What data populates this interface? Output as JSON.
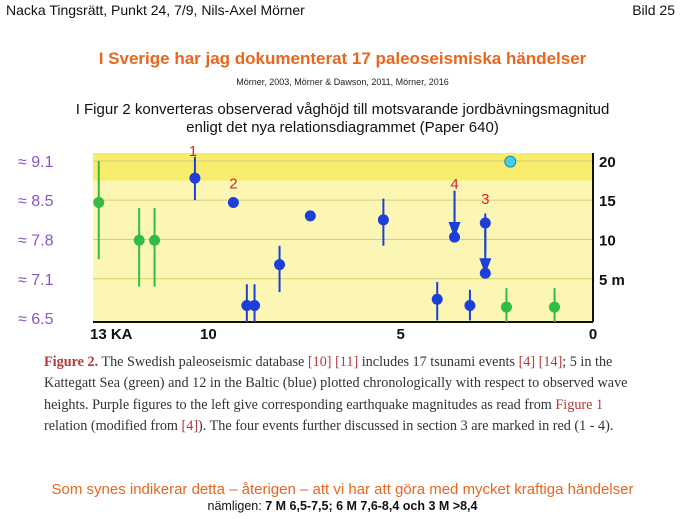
{
  "header": {
    "left": "Nacka Tingsrätt, Punkt 24, 7/9, Nils-Axel Mörner",
    "right": "Bild 25"
  },
  "title": "I Sverige har jag dokumenterat 17 paleoseismiska händelser",
  "references": "Mörner, 2003, Mörner & Dawson, 2011, Mörner, 2016",
  "intro": {
    "line1": "I Figur 2 konverteras observerad våghöjd till motsvarande jordbävningsmagnitud",
    "line2": "enligt det nya relationsdiagrammet (Paper 640)"
  },
  "chart_data": {
    "type": "scatter",
    "xlim": [
      13,
      0
    ],
    "x_ticks": [
      "13 KA",
      "10",
      "5",
      "0"
    ],
    "x_tick_values": [
      13,
      10,
      5,
      0
    ],
    "left_ticks": [
      "≈ 9.1",
      "≈ 8.5",
      "≈ 7.8",
      "≈ 7.1",
      "≈ 6.5"
    ],
    "right_ticks": [
      "20",
      "15",
      "10",
      "5 m"
    ],
    "right_tick_values": [
      20,
      15,
      10,
      5
    ],
    "ylim": [
      -0.5,
      21
    ],
    "colors": {
      "green": "#33bb44",
      "blue": "#1b3fd8",
      "cyan": "#44ccee",
      "red_label": "#dd2222",
      "band_dark": "#f7ec6c",
      "band_light": "#fbf6b4"
    },
    "series": [
      {
        "name": "Kattegatt Sea",
        "color": "green",
        "points": [
          {
            "x": 12.85,
            "y": 14.7,
            "low": 7.5,
            "high": 20
          },
          {
            "x": 11.8,
            "y": 9.9,
            "low": 4,
            "high": 14
          },
          {
            "x": 11.4,
            "y": 9.9,
            "low": 4,
            "high": 14
          },
          {
            "x": 2.25,
            "y": 1.4,
            "low": -0.5,
            "high": 3.8
          },
          {
            "x": 1.0,
            "y": 1.4,
            "low": -0.5,
            "high": 3.8
          }
        ]
      },
      {
        "name": "Baltic",
        "color": "blue",
        "points": [
          {
            "x": 10.35,
            "y": 17.8,
            "low": 15,
            "high": 20.5
          },
          {
            "x": 9.35,
            "y": 14.7,
            "low": 14.7,
            "high": 14.7
          },
          {
            "x": 9.0,
            "y": 1.6,
            "low": -0.5,
            "high": 4.3
          },
          {
            "x": 8.8,
            "y": 1.6,
            "low": -0.5,
            "high": 4.3
          },
          {
            "x": 8.15,
            "y": 6.8,
            "low": 3.3,
            "high": 9.2
          },
          {
            "x": 7.35,
            "y": 13.0,
            "low": 13.0,
            "high": 13.0
          },
          {
            "x": 5.45,
            "y": 12.5,
            "low": 9.2,
            "high": 15.2
          },
          {
            "x": 4.05,
            "y": 2.4,
            "low": -0.3,
            "high": 4.6
          },
          {
            "x": 3.6,
            "y": 10.3,
            "low": 10.3,
            "high": 16.2
          },
          {
            "x": 3.2,
            "y": 1.6,
            "low": -0.3,
            "high": 3.6
          },
          {
            "x": 2.8,
            "y": 12.1,
            "low": 8.3,
            "high": 13.3
          },
          {
            "x": 2.8,
            "y": 5.7,
            "low": 5.7,
            "high": 5.7
          }
        ]
      },
      {
        "name": "",
        "color": "cyan",
        "points": [
          {
            "x": 2.15,
            "y": 19.9,
            "low": 19.9,
            "high": 19.9
          }
        ]
      }
    ],
    "annotations": [
      {
        "text": "1",
        "x": 10.4,
        "y": 20.6
      },
      {
        "text": "2",
        "x": 9.35,
        "y": 16.5
      },
      {
        "text": "4",
        "x": 3.6,
        "y": 16.4
      },
      {
        "text": "3",
        "x": 2.8,
        "y": 14.5
      }
    ]
  },
  "caption": {
    "label": "Figure 2.",
    "part1": " The Swedish paleoseismic database ",
    "ref10": "[10]",
    "sp1": " ",
    "ref11": "[11]",
    "part2": " includes 17 tsunami events ",
    "ref4a": "[4]",
    "sp2": " ",
    "ref14": "[14]",
    "part3": "; 5 in the Kattegatt Sea (green) and 12 in the Baltic (blue) plotted chronologically with respect to observed wave heights. ",
    "purple": "Purple",
    "part4": " figures to the left give corresponding earthquake magnitudes as read from ",
    "fig1": "Figure 1",
    "part5": " relation (modified from ",
    "ref4b": "[4]",
    "part6": "). The four events further discussed in section 3 are marked in red (1 - 4)."
  },
  "conclusion": "Som synes indikerar detta – återigen – att vi har att göra med mycket kraftiga händelser",
  "namely": {
    "prefix": "nämligen: ",
    "bold": "7 M 6,5-7,5; 6 M 7,6-8,4 och 3 M >8,4"
  }
}
